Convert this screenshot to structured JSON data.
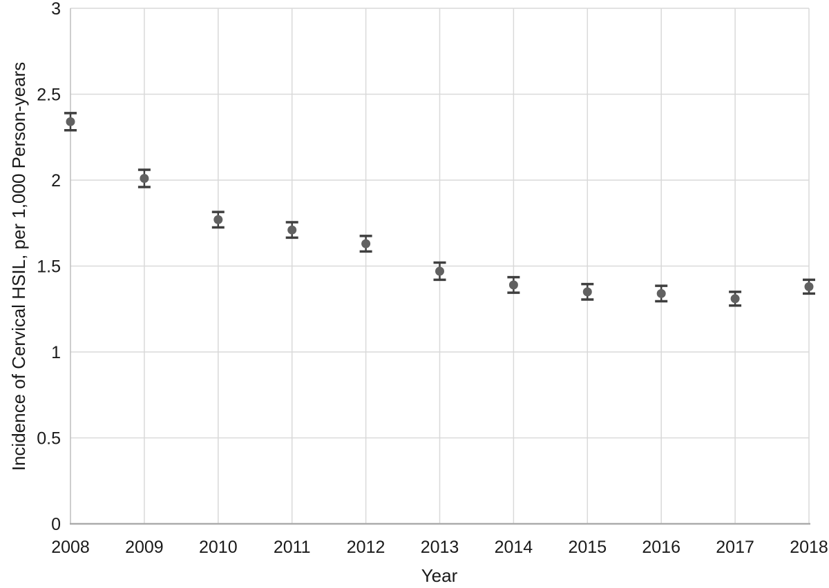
{
  "chart_data": {
    "type": "scatter",
    "title": "",
    "xlabel": "Year",
    "ylabel": "Incidence of Cervical HSIL, per 1,000 Person-years",
    "categories": [
      "2008",
      "2009",
      "2010",
      "2011",
      "2012",
      "2013",
      "2014",
      "2015",
      "2016",
      "2017",
      "2018"
    ],
    "series": [
      {
        "name": "Incidence of Cervical HSIL per 1,000 person-years",
        "values": [
          2.34,
          2.01,
          1.77,
          1.71,
          1.63,
          1.47,
          1.39,
          1.35,
          1.34,
          1.31,
          1.38
        ],
        "error_half_width": [
          0.05,
          0.05,
          0.045,
          0.045,
          0.045,
          0.05,
          0.045,
          0.045,
          0.045,
          0.04,
          0.04
        ]
      }
    ],
    "ylim": [
      0,
      3
    ],
    "ytick_values": [
      0,
      0.5,
      1,
      1.5,
      2,
      2.5,
      3
    ],
    "ytick_labels": [
      "0",
      "0.5",
      "1",
      "1.5",
      "2",
      "2.5",
      "3"
    ],
    "grid": true,
    "legend": "none",
    "marker": "circle-with-error-bars",
    "colors": {
      "point": "#616161",
      "error_bar": "#3f3f3f",
      "gridline": "#d9d9d9",
      "axis_line": "#ababab",
      "left_border": "#bdbdbd",
      "text": "#1a1a1a",
      "background": "#ffffff"
    }
  }
}
